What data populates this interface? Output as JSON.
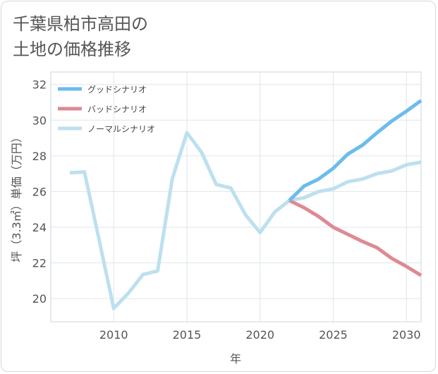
{
  "title": {
    "line1": "千葉県柏市高田の",
    "line2": "土地の価格推移"
  },
  "chart_data": {
    "type": "line",
    "xlabel": "年",
    "ylabel": "坪（3.3㎡）単価（万円）",
    "xlim": [
      2005.7,
      2031
    ],
    "ylim": [
      18.7,
      32.7
    ],
    "xticks": [
      2010,
      2015,
      2020,
      2025,
      2030
    ],
    "yticks": [
      20,
      22,
      24,
      26,
      28,
      30,
      32
    ],
    "grid": true,
    "legend_position": "top-left",
    "series": [
      {
        "name": "グッドシナリオ",
        "color": "#6bbcec",
        "x": [
          2022,
          2023,
          2024,
          2025,
          2026,
          2027,
          2028,
          2029,
          2030,
          2031
        ],
        "y": [
          25.5,
          26.3,
          26.7,
          27.3,
          28.1,
          28.6,
          29.3,
          29.95,
          30.5,
          31.1
        ]
      },
      {
        "name": "バッドシナリオ",
        "color": "#de8a92",
        "x": [
          2022,
          2023,
          2024,
          2025,
          2026,
          2027,
          2028,
          2029,
          2030,
          2031
        ],
        "y": [
          25.5,
          25.1,
          24.6,
          24.0,
          23.6,
          23.2,
          22.85,
          22.25,
          21.8,
          21.3
        ]
      },
      {
        "name": "ノーマルシナリオ",
        "color": "#bde0ef",
        "x": [
          2007,
          2008,
          2009,
          2010,
          2011,
          2012,
          2013,
          2014,
          2015,
          2016,
          2017,
          2018,
          2019,
          2020,
          2021,
          2022,
          2023,
          2024,
          2025,
          2026,
          2027,
          2028,
          2029,
          2030,
          2031
        ],
        "y": [
          27.05,
          27.1,
          23.3,
          19.45,
          20.3,
          21.35,
          21.55,
          26.7,
          29.3,
          28.2,
          26.4,
          26.2,
          24.7,
          23.7,
          24.85,
          25.5,
          25.65,
          26.0,
          26.15,
          26.55,
          26.7,
          27.0,
          27.15,
          27.5,
          27.65
        ]
      }
    ]
  }
}
